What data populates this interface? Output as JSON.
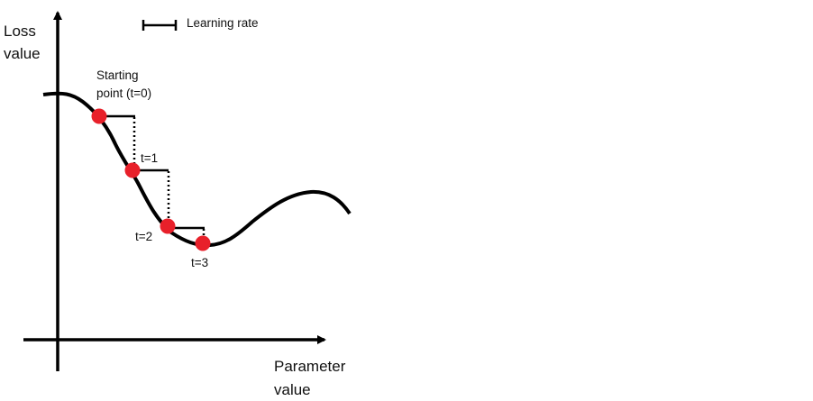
{
  "diagram": {
    "y_axis_label_line1": "Loss",
    "y_axis_label_line2": "value",
    "x_axis_label_line1": "Parameter",
    "x_axis_label_line2": "value",
    "legend_label": "Learning rate",
    "start_label_line1": "Starting",
    "start_label_line2": "point (t=0)",
    "step_labels": [
      "t=1",
      "t=2",
      "t=3"
    ],
    "colors": {
      "curve": "#000000",
      "point": "#e8202a",
      "axis": "#000000"
    }
  }
}
